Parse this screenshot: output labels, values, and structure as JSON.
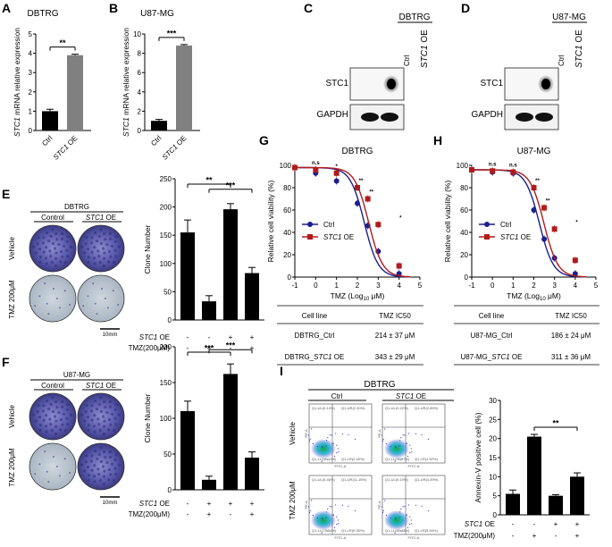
{
  "figure": {
    "panel_labels": {
      "A": "A",
      "B": "B",
      "C": "C",
      "D": "D",
      "E": "E",
      "F": "F",
      "G": "G",
      "H": "H",
      "I": "I"
    },
    "scale_bar": "10mm",
    "vehicle": "Vehicle",
    "tmz_200": "TMZ 200μM",
    "control": "Control",
    "ctrl": "Ctrl",
    "stc1_it": "STC1",
    "oe": " OE",
    "stc1_label": "STC1",
    "gapdh_label": "GAPDH",
    "tmz_200_paren": "TMZ(200μM)",
    "plus": "+",
    "minus": "-",
    "annex_title": "DBTRG",
    "annex_ctrl": "Ctrl",
    "flow_axes": {
      "x": "FITC-A",
      "y": "PE-A"
    }
  },
  "chart_data": [
    {
      "id": "A",
      "type": "bar",
      "title": "DBTRG",
      "categories": [
        "Ctrl",
        "STC1 OE"
      ],
      "values": [
        1.0,
        3.9
      ],
      "errors": [
        0.1,
        0.05
      ],
      "colors": [
        "#000000",
        "#808080"
      ],
      "ylabel_it": "STC1",
      "ylabel_rest": " mRNA relative expression",
      "ylim": [
        0,
        5
      ],
      "yticks": [
        "0",
        "1",
        "2",
        "3",
        "4",
        "5"
      ],
      "significance": "**"
    },
    {
      "id": "B",
      "type": "bar",
      "title": "U87-MG",
      "categories": [
        "Ctrl",
        "STC1 OE"
      ],
      "values": [
        1.0,
        8.8
      ],
      "errors": [
        0.15,
        0.1
      ],
      "colors": [
        "#000000",
        "#808080"
      ],
      "ylabel_it": "STC1",
      "ylabel_rest": " mRNA relative expression",
      "ylim": [
        0,
        10
      ],
      "yticks": [
        "0",
        "2",
        "4",
        "6",
        "8",
        "10"
      ],
      "significance": "***"
    },
    {
      "id": "C",
      "type": "western_blot",
      "title": "DBTRG",
      "lanes": [
        "Ctrl",
        "STC1 OE"
      ],
      "rows": [
        "STC1",
        "GAPDH"
      ]
    },
    {
      "id": "D",
      "type": "western_blot",
      "title": "U87-MG",
      "lanes": [
        "Ctrl",
        "STC1 OE"
      ],
      "rows": [
        "STC1",
        "GAPDH"
      ]
    },
    {
      "id": "E",
      "type": "bar",
      "title": "DBTRG",
      "ylabel": "Clone Number",
      "values": [
        155,
        33,
        196,
        83
      ],
      "errors": [
        22,
        10,
        10,
        10
      ],
      "ylim": [
        0,
        250
      ],
      "yticks": [
        "0",
        "50",
        "100",
        "150",
        "200",
        "250"
      ],
      "stc1_oe": [
        "-",
        "-",
        "+",
        "+"
      ],
      "tmz": [
        "-",
        "+",
        "-",
        "+"
      ],
      "significance": [
        "**",
        "***"
      ]
    },
    {
      "id": "F",
      "type": "bar",
      "title": "U87-MG",
      "ylabel": "Clone Number",
      "values": [
        110,
        14,
        162,
        45
      ],
      "errors": [
        14,
        5,
        14,
        8
      ],
      "ylim": [
        0,
        200
      ],
      "yticks": [
        "0",
        "50",
        "100",
        "150",
        "200"
      ],
      "stc1_oe": [
        "-",
        "+",
        "+",
        "+"
      ],
      "tmz": [
        "-",
        "+",
        "-",
        "+"
      ],
      "significance": [
        "***",
        "***"
      ]
    },
    {
      "id": "G",
      "type": "line",
      "title": "DBTRG",
      "xlabel": "TMZ (Log",
      "xlabel_sub": "10",
      "xlabel_end": " μM)",
      "ylabel": "Relative cell viability (%)",
      "xlim": [
        -1,
        5
      ],
      "ylim": [
        0,
        100
      ],
      "xticks": [
        "-1",
        "0",
        "1",
        "2",
        "3",
        "4",
        "5"
      ],
      "yticks": [
        "0",
        "20",
        "40",
        "60",
        "80",
        "100"
      ],
      "series": [
        {
          "name": "Ctrl",
          "color": "#1b1f8f",
          "x": [
            -1,
            0,
            1,
            2,
            2.5,
            3,
            4
          ],
          "y": [
            98,
            93,
            86,
            66,
            46,
            23,
            3
          ],
          "ic50": 2.33
        },
        {
          "name": "STC1 OE",
          "color": "#b01b1b",
          "x": [
            -1,
            0,
            1,
            2,
            2.5,
            3,
            4
          ],
          "y": [
            98,
            96,
            93,
            80,
            70,
            47,
            10
          ],
          "ic50": 2.54
        }
      ],
      "annotations": [
        "n.s",
        "*",
        "**",
        "**",
        "*"
      ],
      "table": {
        "headers": [
          "Cell line",
          "TMZ IC50"
        ],
        "rows": [
          {
            "pre": "DBTRG_Ctrl",
            "it": "",
            "post": "",
            "value": "214 ± 37 μM"
          },
          {
            "pre": "DBTRG_",
            "it": "STC1",
            "post": " OE",
            "value": "343 ± 29 μM"
          }
        ]
      }
    },
    {
      "id": "H",
      "type": "line",
      "title": "U87-MG",
      "xlabel": "TMZ (Log",
      "xlabel_sub": "10",
      "xlabel_end": " μM)",
      "ylabel": "Relative cell viability (%)",
      "xlim": [
        -1,
        5
      ],
      "ylim": [
        0,
        100
      ],
      "xticks": [
        "-1",
        "0",
        "1",
        "2",
        "3",
        "4",
        "5"
      ],
      "yticks": [
        "0",
        "20",
        "40",
        "60",
        "80",
        "100"
      ],
      "series": [
        {
          "name": "Ctrl",
          "color": "#1b1f8f",
          "x": [
            -1,
            0,
            1,
            2,
            2.5,
            3,
            4
          ],
          "y": [
            96,
            94,
            93,
            60,
            34,
            17,
            3
          ],
          "ic50": 2.27
        },
        {
          "name": "STC1 OE",
          "color": "#b01b1b",
          "x": [
            -1,
            0,
            1,
            2,
            2.5,
            3,
            4
          ],
          "y": [
            96,
            95,
            94,
            80,
            62,
            43,
            15
          ],
          "ic50": 2.49
        }
      ],
      "annotations": [
        "n.s",
        "n.s",
        "**",
        "**",
        "*"
      ],
      "table": {
        "headers": [
          "Cell line",
          "TMZ IC50"
        ],
        "rows": [
          {
            "pre": "U87-MG_Ctrl",
            "it": "",
            "post": "",
            "value": "186 ± 24 μM"
          },
          {
            "pre": "U87-MG_",
            "it": "STC1",
            "post": " OE",
            "value": "311 ± 36 μM"
          }
        ]
      }
    },
    {
      "id": "I",
      "type": "bar",
      "ylabel": "Annexin-V positive cell (%)",
      "values": [
        5.5,
        20.5,
        5.0,
        10.0
      ],
      "errors": [
        1.0,
        0.6,
        0.3,
        1.0
      ],
      "ylim": [
        0,
        30
      ],
      "yticks": [
        "0",
        "5",
        "10",
        "15",
        "20",
        "25",
        "30"
      ],
      "stc1_oe": [
        "-",
        "-",
        "+",
        "+"
      ],
      "tmz": [
        "-",
        "+",
        "-",
        "+"
      ],
      "significance": "**",
      "flow_quadrants": [
        [
          "Q1-UL(0.13%)",
          "Q1-UR(2.30%)",
          "Q1-LL(95.12%)",
          "Q1-LR(2.45%)"
        ],
        [
          "Q1-UL(0.22%)",
          "Q1-UR(2.89%)",
          "Q1-LL(95.37%)",
          "Q1-LR(1.52%)"
        ],
        [
          "Q1-UL(0.46%)",
          "Q1-UR(11.15%)",
          "Q1-LL(79.34%)",
          "Q1-LR(9.05%)"
        ],
        [
          "Q1-UL(0.19%)",
          "Q1-UR(4.39%)",
          "Q1-LL(89.48%)",
          "Q1-LR(5.94%)"
        ]
      ]
    }
  ]
}
